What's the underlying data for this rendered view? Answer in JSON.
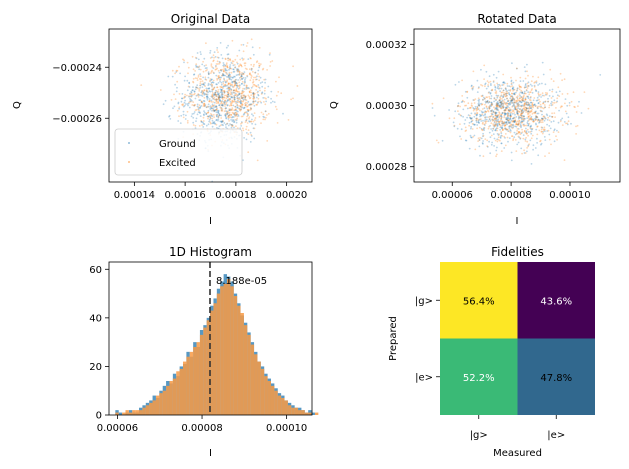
{
  "colors": {
    "ground": "#1f77b4",
    "excited": "#ff7f0e",
    "hist_ground": "#4e92c0",
    "hist_excited": "#f89a44",
    "threshold": "#333333"
  },
  "chart_data": [
    {
      "type": "scatter",
      "title": "Original Data",
      "xlabel": "I",
      "ylabel": "Q",
      "xlim": [
        0.00013,
        0.00021
      ],
      "ylim": [
        -0.000285,
        -0.000225
      ],
      "xticks": [
        0.00014,
        0.00016,
        0.00018,
        0.0002
      ],
      "xtick_labels": [
        "0.00014",
        "0.00016",
        "0.00018",
        "0.00020"
      ],
      "yticks": [
        -0.00026,
        -0.00024
      ],
      "ytick_labels": [
        "−0.00026",
        "−0.00024"
      ],
      "grid": false,
      "legend_position": "lower-left",
      "legend": [
        "Ground",
        "Excited"
      ],
      "series": [
        {
          "name": "Ground",
          "center": [
            0.000175,
            -0.000252
          ],
          "spread": [
            8.5e-06,
            8.5e-06
          ]
        },
        {
          "name": "Excited",
          "center": [
            0.000177,
            -0.000251
          ],
          "spread": [
            8.5e-06,
            8.5e-06
          ]
        }
      ]
    },
    {
      "type": "scatter",
      "title": "Rotated Data",
      "xlabel": "I",
      "ylabel": "Q",
      "xlim": [
        4.7e-05,
        0.000117
      ],
      "ylim": [
        0.000275,
        0.000325
      ],
      "xticks": [
        6e-05,
        8e-05,
        0.0001
      ],
      "xtick_labels": [
        "0.00006",
        "0.00008",
        "0.00010"
      ],
      "yticks": [
        0.00028,
        0.0003,
        0.00032
      ],
      "ytick_labels": [
        "0.00028",
        "0.00030",
        "0.00032"
      ],
      "grid": false,
      "series": [
        {
          "name": "Ground",
          "center": [
            7.95e-05,
            0.000298
          ],
          "spread": [
            8.5e-06,
            5.5e-06
          ]
        },
        {
          "name": "Excited",
          "center": [
            8.05e-05,
            0.000298
          ],
          "spread": [
            8.5e-06,
            5.5e-06
          ]
        }
      ]
    },
    {
      "type": "bar",
      "title": "1D Histogram",
      "xlabel": "I",
      "ylabel": "",
      "xlim": [
        5.8e-05,
        0.000106
      ],
      "ylim": [
        0,
        63
      ],
      "xticks": [
        6e-05,
        8e-05,
        0.0001
      ],
      "xtick_labels": [
        "0.00006",
        "0.00008",
        "0.00010"
      ],
      "yticks": [
        0,
        20,
        40,
        60
      ],
      "ytick_labels": [
        "0",
        "20",
        "40",
        "60"
      ],
      "threshold": 8.188e-05,
      "threshold_label": "8.188e-05",
      "bin_start": 5.95e-05,
      "bin_width": 8e-07,
      "series": [
        {
          "name": "Ground",
          "values": [
            2,
            1,
            0,
            1,
            2,
            1,
            1,
            3,
            4,
            5,
            6,
            8,
            7,
            10,
            12,
            14,
            13,
            17,
            16,
            20,
            21,
            26,
            24,
            30,
            28,
            35,
            37,
            40,
            45,
            48,
            52,
            55,
            58,
            57,
            55,
            50,
            46,
            41,
            38,
            34,
            30,
            26,
            22,
            20,
            17,
            15,
            13,
            11,
            9,
            8,
            6,
            5,
            4,
            3,
            3,
            2,
            1,
            2,
            1,
            0
          ]
        },
        {
          "name": "Excited",
          "values": [
            1,
            0,
            1,
            2,
            1,
            2,
            2,
            2,
            3,
            4,
            5,
            6,
            8,
            9,
            10,
            12,
            14,
            15,
            18,
            19,
            22,
            24,
            26,
            28,
            30,
            33,
            36,
            39,
            43,
            46,
            50,
            53,
            54,
            56,
            53,
            49,
            45,
            42,
            37,
            33,
            29,
            25,
            22,
            19,
            16,
            14,
            12,
            10,
            8,
            7,
            6,
            4,
            3,
            3,
            2,
            2,
            1,
            1,
            0,
            1
          ]
        }
      ]
    },
    {
      "type": "heatmap",
      "title": "Fidelities",
      "xlabel": "Measured",
      "ylabel": "Prepared",
      "x_categories": [
        "|g>",
        "|e>"
      ],
      "y_categories": [
        "|g>",
        "|e>"
      ],
      "values": [
        [
          56.4,
          43.6
        ],
        [
          52.2,
          47.8
        ]
      ],
      "cell_labels": [
        [
          "56.4%",
          "43.6%"
        ],
        [
          "52.2%",
          "47.8%"
        ]
      ],
      "cell_colors": [
        [
          "#fde725",
          "#440154"
        ],
        [
          "#3aba76",
          "#31688e"
        ]
      ],
      "label_colors": [
        [
          "#000000",
          "#ffffff"
        ],
        [
          "#ffffff",
          "#000000"
        ]
      ]
    }
  ]
}
